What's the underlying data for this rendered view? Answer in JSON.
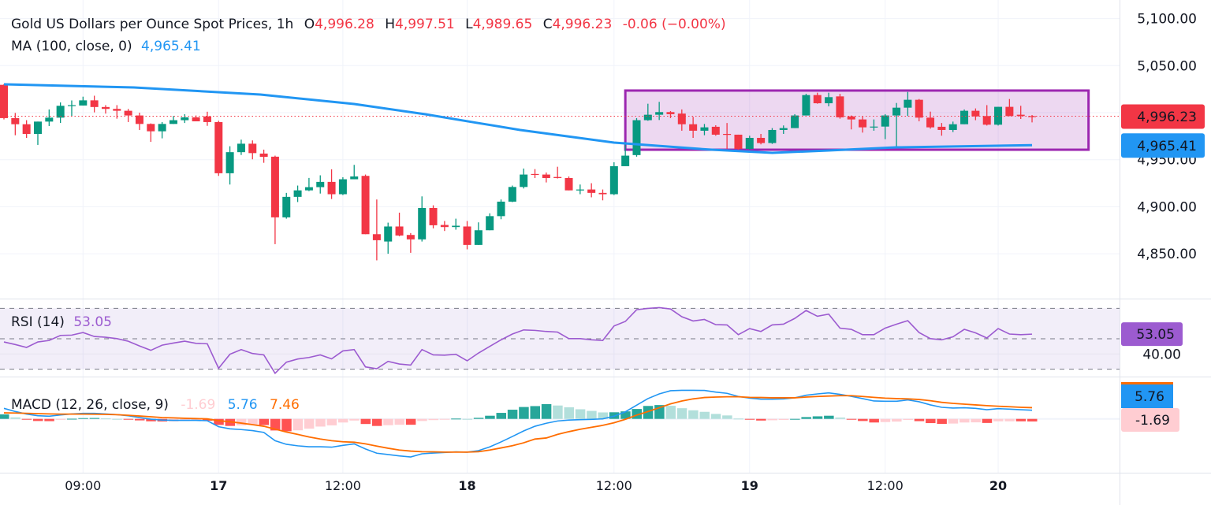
{
  "header": {
    "title": "Gold US Dollars per Ounce Spot Prices, 1h",
    "o_label": "O",
    "o": "4,996.28",
    "h_label": "H",
    "h": "4,997.51",
    "l_label": "L",
    "l": "4,989.65",
    "c_label": "C",
    "c": "4,996.23",
    "change": "-0.06 (−0.00%)"
  },
  "ma_legend": {
    "label": "MA (100, close, 0)",
    "value": "4,965.41"
  },
  "rsi_legend": {
    "label": "RSI (14)",
    "value": "53.05"
  },
  "macd_legend": {
    "label": "MACD (12, 26, close, 9)",
    "hist": "-1.69",
    "macd": "5.76",
    "signal": "7.46"
  },
  "price_axis": {
    "ticks": [
      {
        "v": 5100,
        "label": "5,100.00"
      },
      {
        "v": 5050,
        "label": "5,050.00"
      },
      {
        "v": 4950,
        "label": "4,950.00"
      },
      {
        "v": 4900,
        "label": "4,900.00"
      },
      {
        "v": 4850,
        "label": "4,850.00"
      }
    ],
    "last_price": {
      "v": 4996.23,
      "label": "4,996.23"
    },
    "ma_price": {
      "v": 4965.41,
      "label": "4,965.41"
    }
  },
  "rsi_axis": {
    "levels": [
      70,
      50,
      30
    ],
    "tick": {
      "v": 40,
      "label": "40.00"
    },
    "last": {
      "v": 53.05,
      "label": "53.05"
    }
  },
  "macd_axis": {
    "macd_last": {
      "v": 5.76,
      "label": "5.76"
    },
    "hist_last": {
      "v": -1.69,
      "label": "-1.69"
    }
  },
  "time_axis": [
    {
      "bar": 7,
      "label": "09:00"
    },
    {
      "bar": 19,
      "label": "17"
    },
    {
      "bar": 30,
      "label": "12:00"
    },
    {
      "bar": 41,
      "label": "18"
    },
    {
      "bar": 54,
      "label": "12:00"
    },
    {
      "bar": 66,
      "label": "19"
    },
    {
      "bar": 78,
      "label": "12:00"
    },
    {
      "bar": 88,
      "label": "20"
    }
  ],
  "colors": {
    "up": "#089981",
    "down": "#f23645",
    "ma": "#2196f3",
    "rsi": "#9c5bd0",
    "macd": "#2196f3",
    "signal": "#ff6d00",
    "rectangle": "#9c27b0",
    "hist_up_strong": "#26a69a",
    "hist_up_weak": "#b2dfdb",
    "hist_down_strong": "#ff5252",
    "hist_down_weak": "#ffcdd2"
  },
  "chart_data": {
    "type": "candlestick",
    "interval": "1h",
    "ylim": [
      4820,
      5110
    ],
    "ohlc": [
      [
        5029.6,
        5030.4,
        4992.8,
        4994.2
      ],
      [
        4994.2,
        4999.7,
        4976,
        4987.7
      ],
      [
        4987.7,
        4992,
        4973.2,
        4977.4
      ],
      [
        4977.4,
        4990.5,
        4965.7,
        4990.5
      ],
      [
        4990.5,
        5003.4,
        4985.8,
        4994.7
      ],
      [
        4994.7,
        5010.9,
        4989.1,
        5007.3
      ],
      [
        5007.3,
        5013,
        4996,
        5008
      ],
      [
        5007.6,
        5017,
        5007.6,
        5013.1
      ],
      [
        5013.1,
        5018,
        5000.3,
        5006
      ],
      [
        5006,
        5008,
        4999,
        5004
      ],
      [
        5004,
        5008,
        4993.6,
        5002
      ],
      [
        5002,
        5004,
        4990,
        4997
      ],
      [
        4997,
        5000,
        4981.6,
        4988
      ],
      [
        4988,
        4988.6,
        4969,
        4980.2
      ],
      [
        4980.2,
        4990,
        4972.7,
        4988
      ],
      [
        4988,
        4996.4,
        4988,
        4992
      ],
      [
        4992,
        4998.4,
        4989,
        4995
      ],
      [
        4995,
        4997,
        4990.8,
        4990.8
      ],
      [
        4996,
        5001,
        4986,
        4990
      ],
      [
        4990,
        4991.4,
        4932.8,
        4935.6
      ],
      [
        4935.6,
        4964.3,
        4923.6,
        4958
      ],
      [
        4958,
        4971.3,
        4955,
        4967
      ],
      [
        4967,
        4970.5,
        4950.4,
        4957
      ],
      [
        4956.5,
        4960.7,
        4946.7,
        4953
      ],
      [
        4953.2,
        4954.3,
        4860.2,
        4888.7
      ],
      [
        4888.7,
        4914.7,
        4887.3,
        4910.5
      ],
      [
        4910.5,
        4922.5,
        4905,
        4917.4
      ],
      [
        4917.4,
        4930.6,
        4916.6,
        4920.8
      ],
      [
        4920.8,
        4933.4,
        4914,
        4926.4
      ],
      [
        4926.4,
        4939.8,
        4908.2,
        4913.3
      ],
      [
        4913.3,
        4931.4,
        4912.4,
        4929.2
      ],
      [
        4929.2,
        4944.5,
        4929.2,
        4932.2
      ],
      [
        4932.8,
        4934.2,
        4870.8,
        4870.8
      ],
      [
        4870.8,
        4907.7,
        4843,
        4864.4
      ],
      [
        4863,
        4883.1,
        4850,
        4879
      ],
      [
        4879,
        4893.7,
        4868.6,
        4869.4
      ],
      [
        4870,
        4872,
        4851,
        4865.3
      ],
      [
        4865.3,
        4911,
        4863,
        4898.7
      ],
      [
        4898.7,
        4901.5,
        4877,
        4880.3
      ],
      [
        4880.6,
        4884.8,
        4874.2,
        4878.4
      ],
      [
        4878.4,
        4887.3,
        4875.6,
        4879.8
      ],
      [
        4879,
        4884.8,
        4854.7,
        4859.4
      ],
      [
        4859.4,
        4883.4,
        4859.4,
        4875
      ],
      [
        4875,
        4893,
        4875,
        4890
      ],
      [
        4890,
        4907.7,
        4886.7,
        4905.4
      ],
      [
        4905.4,
        4922.5,
        4904.9,
        4921
      ],
      [
        4921,
        4940.6,
        4919.4,
        4934.2
      ],
      [
        4934.8,
        4940,
        4930.5,
        4933.8
      ],
      [
        4934.2,
        4936.4,
        4925.8,
        4930.5
      ],
      [
        4931.6,
        4942.5,
        4930,
        4930.5
      ],
      [
        4930.5,
        4932.2,
        4917.4,
        4917.4
      ],
      [
        4917.4,
        4923.6,
        4913.3,
        4918.3
      ],
      [
        4918.3,
        4925,
        4910,
        4914.7
      ],
      [
        4914.7,
        4918.3,
        4906.8,
        4913.3
      ],
      [
        4913.3,
        4947.3,
        4912.4,
        4943.1
      ],
      [
        4943.1,
        4969,
        4943.1,
        4954.3
      ],
      [
        4954.9,
        4994.2,
        4953.2,
        4992
      ],
      [
        4992,
        5009.5,
        4991.4,
        4997.8
      ],
      [
        4997.8,
        5011.5,
        4992.2,
        5000.6
      ],
      [
        5000.6,
        5001.7,
        4994.2,
        4998.4
      ],
      [
        4999,
        5003.4,
        4980.8,
        4987.7
      ],
      [
        4987.7,
        4995.6,
        4973.2,
        4980.8
      ],
      [
        4980.8,
        4988,
        4976,
        4984.4
      ],
      [
        4985,
        4986.6,
        4975.5,
        4976.6
      ],
      [
        4977.4,
        4989,
        4961.5,
        4976.6
      ],
      [
        4976.6,
        4976.6,
        4960.7,
        4961.5
      ],
      [
        4961.5,
        4975.5,
        4960.7,
        4973.2
      ],
      [
        4973.2,
        4977.4,
        4966.3,
        4967.7
      ],
      [
        4967.7,
        4983.6,
        4966.8,
        4981.6
      ],
      [
        4981.6,
        4986.4,
        4977.4,
        4983.6
      ],
      [
        4983.6,
        4998.4,
        4983.6,
        4997
      ],
      [
        4997,
        5020.1,
        4997,
        5018.7
      ],
      [
        5018.7,
        5021.2,
        5009.5,
        5010
      ],
      [
        5010,
        5021.2,
        5006.7,
        5016.5
      ],
      [
        5017.3,
        5020,
        4993.6,
        4995
      ],
      [
        4996,
        4997,
        4982.2,
        4992.8
      ],
      [
        4992.8,
        4996.4,
        4978.8,
        4984.4
      ],
      [
        4984.4,
        4992.8,
        4980.8,
        4985.2
      ],
      [
        4985.2,
        4998.4,
        4971.8,
        4997
      ],
      [
        4997,
        5010.3,
        4964.3,
        5005.3
      ],
      [
        5005.3,
        5022,
        4996.4,
        5013.7
      ],
      [
        5013.7,
        5014.5,
        4990.8,
        4994.7
      ],
      [
        4994.7,
        5001.1,
        4983,
        4984.4
      ],
      [
        4985,
        4989,
        4975.5,
        4981.6
      ],
      [
        4981.6,
        4990.5,
        4979.4,
        4987.7
      ],
      [
        4987.7,
        5003.4,
        4987.7,
        5002
      ],
      [
        5002,
        5004.5,
        4992,
        4996
      ],
      [
        4996.4,
        5008,
        4986.3,
        4987.2
      ],
      [
        4987.2,
        5006.2,
        4986.3,
        5006.2
      ],
      [
        5006.2,
        5014.5,
        4996.4,
        4996.4
      ],
      [
        4997.8,
        5007.3,
        4993.3,
        4996.4
      ],
      [
        4996.28,
        4997.51,
        4989.65,
        4996.23
      ]
    ],
    "ma100": [
      [
        0,
        5030.2
      ],
      [
        11.5,
        5026.8
      ],
      [
        22.7,
        5019.3
      ],
      [
        31,
        5009.2
      ],
      [
        37.3,
        4998.3
      ],
      [
        41.5,
        4989.9
      ],
      [
        45.7,
        4981.6
      ],
      [
        54,
        4968.2
      ],
      [
        62.5,
        4960.7
      ],
      [
        68,
        4957.3
      ],
      [
        73,
        4959.8
      ],
      [
        79,
        4963.1
      ],
      [
        91,
        4965.41
      ]
    ],
    "rectangle": {
      "bar_start": 55,
      "bar_end": 96,
      "price_top": 5023.5,
      "price_bottom": 4960.6
    },
    "rsi": [
      47.9,
      46.2,
      44.3,
      47.9,
      48.9,
      52.2,
      52.4,
      54.1,
      51.5,
      51,
      50.1,
      48.4,
      45.3,
      42.4,
      45.8,
      47.2,
      48.4,
      47,
      46.7,
      30.6,
      39.8,
      42.9,
      40.3,
      39.4,
      27.3,
      34.6,
      36.7,
      37.7,
      39.4,
      36.8,
      42,
      42.9,
      31.5,
      30.3,
      35.1,
      33.4,
      32.7,
      42.9,
      39.4,
      39.2,
      39.8,
      35.5,
      40.6,
      45,
      49.3,
      53.1,
      55.8,
      55.5,
      54.8,
      54.4,
      50.1,
      50.1,
      49.3,
      48.9,
      58.4,
      61.4,
      69.1,
      70,
      70.5,
      69.6,
      64.5,
      61.7,
      62.7,
      59.3,
      59.1,
      52.7,
      56.7,
      54.8,
      59.1,
      59.6,
      63.4,
      68.6,
      64.8,
      66.2,
      57,
      56.2,
      52.7,
      52.7,
      57,
      59.6,
      61.9,
      54.1,
      50.1,
      49.3,
      51.3,
      56.2,
      53.9,
      50.5,
      56.7,
      53.1,
      52.7,
      53.05
    ],
    "macd": [
      7.0,
      4.9,
      3.2,
      2.1,
      1.8,
      2.6,
      3.3,
      3.7,
      3.7,
      3.3,
      2.8,
      2.1,
      0.9,
      -0.2,
      -0.8,
      -1.0,
      -1.0,
      -1.0,
      -1.2,
      -5.2,
      -6.6,
      -7.1,
      -7.8,
      -9.0,
      -14.5,
      -16.9,
      -17.9,
      -18.5,
      -18.5,
      -18.8,
      -17.6,
      -16.6,
      -20.0,
      -22.8,
      -23.7,
      -24.6,
      -25.3,
      -23.2,
      -22.7,
      -22.3,
      -21.9,
      -22.1,
      -21.1,
      -18.6,
      -15.3,
      -11.7,
      -8.0,
      -4.9,
      -2.9,
      -1.4,
      -0.8,
      -0.5,
      -0.3,
      0.0,
      1.8,
      4.7,
      9.1,
      13.5,
      16.6,
      18.7,
      19.0,
      19.0,
      18.9,
      17.8,
      17.0,
      14.9,
      13.8,
      13.1,
      13.1,
      13.3,
      14.0,
      15.7,
      16.6,
      17.3,
      16.3,
      15.0,
      13.5,
      11.9,
      11.7,
      11.7,
      12.6,
      11.4,
      9.3,
      7.7,
      7.2,
      7.4,
      7.0,
      6.1,
      6.8,
      6.5,
      6.1,
      5.76
    ],
    "signal": [
      4.0,
      3.9,
      3.7,
      3.5,
      3.3,
      3.2,
      3.2,
      3.2,
      3.1,
      3.0,
      2.8,
      2.4,
      1.9,
      1.4,
      0.9,
      0.7,
      0.4,
      0.2,
      0.0,
      -1.2,
      -1.9,
      -2.8,
      -3.8,
      -4.9,
      -6.8,
      -8.7,
      -10.3,
      -12.0,
      -13.4,
      -14.5,
      -15.2,
      -15.5,
      -16.6,
      -18.1,
      -19.5,
      -20.7,
      -21.4,
      -21.8,
      -21.9,
      -22.1,
      -22.1,
      -22.1,
      -21.8,
      -20.7,
      -19.3,
      -17.8,
      -15.9,
      -13.4,
      -12.7,
      -10.3,
      -8.5,
      -6.9,
      -5.6,
      -4.3,
      -2.6,
      -0.3,
      2.5,
      4.9,
      7.4,
      10.0,
      11.9,
      13.3,
      14.2,
      14.5,
      14.7,
      14.7,
      14.3,
      14.2,
      14.0,
      14.0,
      14.0,
      14.5,
      14.9,
      15.2,
      15.4,
      15.4,
      14.9,
      14.3,
      13.8,
      13.5,
      13.3,
      12.9,
      12.1,
      11.0,
      10.3,
      9.8,
      9.3,
      8.8,
      8.4,
      8.1,
      7.7,
      7.46
    ]
  }
}
